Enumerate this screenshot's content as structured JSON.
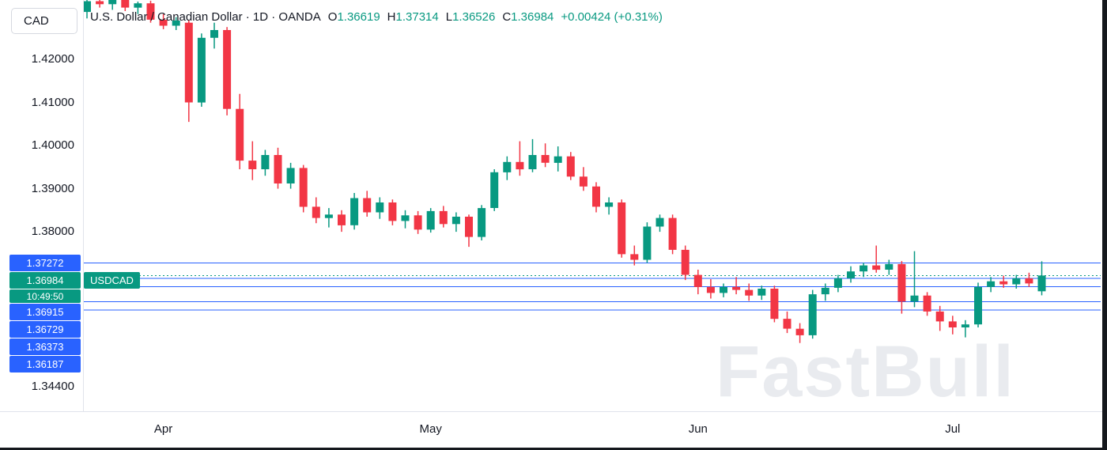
{
  "symbol_button": {
    "label": "CAD"
  },
  "header": {
    "title": "U.S. Dollar / Canadian Dollar · 1D · OANDA",
    "open_label": "O",
    "open": "1.36619",
    "high_label": "H",
    "high": "1.37314",
    "low_label": "L",
    "low": "1.36526",
    "close_label": "C",
    "close": "1.36984",
    "change": "+0.00424 (+0.31%)"
  },
  "watermark": "FastBull",
  "colors": {
    "up": "#089981",
    "down": "#F23645",
    "level_blue": "#2962FF",
    "text": "#131722",
    "axis_border": "#E0E3EB",
    "watermark": "#E9EBEF"
  },
  "chart_data": {
    "type": "candlestick",
    "title": "U.S. Dollar / Canadian Dollar",
    "symbol": "USDCAD",
    "interval": "1D",
    "exchange": "OANDA",
    "legend_position": "top-left",
    "grid": false,
    "visible_price_top": 1.43377,
    "visible_price_bottom": 1.33836,
    "price_ticks": [
      {
        "label": "1.42000",
        "price": 1.42
      },
      {
        "label": "1.41000",
        "price": 1.41
      },
      {
        "label": "1.40000",
        "price": 1.4
      },
      {
        "label": "1.39000",
        "price": 1.39
      },
      {
        "label": "1.38000",
        "price": 1.38
      },
      {
        "label": "1.34400",
        "price": 1.344
      }
    ],
    "levels": [
      {
        "label": "1.37272",
        "price": 1.37272
      },
      {
        "label": "1.36915",
        "price": 1.36915
      },
      {
        "label": "1.36729",
        "price": 1.36729
      },
      {
        "label": "1.36373",
        "price": 1.36373
      },
      {
        "label": "1.36187",
        "price": 1.36187
      }
    ],
    "current_price": {
      "label": "1.36984",
      "price": 1.36984,
      "time": "10:49:50",
      "tag": "USDCAD"
    },
    "time_labels": [
      {
        "label": "Apr",
        "index": 6
      },
      {
        "label": "May",
        "index": 27
      },
      {
        "label": "Jun",
        "index": 48
      },
      {
        "label": "Jul",
        "index": 68
      }
    ],
    "candles": [
      [
        1.431,
        1.434,
        1.4295,
        1.4335
      ],
      [
        1.4335,
        1.4345,
        1.432,
        1.4328
      ],
      [
        1.4328,
        1.434,
        1.4315,
        1.4338
      ],
      [
        1.4338,
        1.4344,
        1.4312,
        1.432
      ],
      [
        1.432,
        1.4334,
        1.4305,
        1.433
      ],
      [
        1.433,
        1.4336,
        1.4285,
        1.4292
      ],
      [
        1.4292,
        1.4305,
        1.427,
        1.4278
      ],
      [
        1.4278,
        1.4298,
        1.4268,
        1.429
      ],
      [
        1.4285,
        1.429,
        1.4055,
        1.41
      ],
      [
        1.41,
        1.426,
        1.409,
        1.425
      ],
      [
        1.425,
        1.4285,
        1.4225,
        1.4268
      ],
      [
        1.4268,
        1.4275,
        1.407,
        1.4085
      ],
      [
        1.4085,
        1.412,
        1.3945,
        1.3965
      ],
      [
        1.3965,
        1.401,
        1.392,
        1.3945
      ],
      [
        1.3945,
        1.399,
        1.393,
        1.3978
      ],
      [
        1.3978,
        1.3995,
        1.39,
        1.3912
      ],
      [
        1.3912,
        1.396,
        1.39,
        1.3948
      ],
      [
        1.3948,
        1.3955,
        1.3845,
        1.3858
      ],
      [
        1.3858,
        1.388,
        1.382,
        1.3832
      ],
      [
        1.3832,
        1.3855,
        1.381,
        1.384
      ],
      [
        1.384,
        1.385,
        1.38,
        1.3815
      ],
      [
        1.3815,
        1.389,
        1.3805,
        1.3878
      ],
      [
        1.3878,
        1.3895,
        1.3835,
        1.3845
      ],
      [
        1.3845,
        1.388,
        1.383,
        1.3868
      ],
      [
        1.3868,
        1.3875,
        1.3815,
        1.3825
      ],
      [
        1.3825,
        1.385,
        1.3808,
        1.3838
      ],
      [
        1.3838,
        1.3848,
        1.3795,
        1.3805
      ],
      [
        1.3805,
        1.3855,
        1.3798,
        1.3848
      ],
      [
        1.3848,
        1.386,
        1.381,
        1.3818
      ],
      [
        1.3818,
        1.3845,
        1.38,
        1.3835
      ],
      [
        1.3835,
        1.384,
        1.3765,
        1.3788
      ],
      [
        1.3788,
        1.3862,
        1.378,
        1.3855
      ],
      [
        1.3855,
        1.3945,
        1.3848,
        1.3938
      ],
      [
        1.3938,
        1.3975,
        1.392,
        1.3962
      ],
      [
        1.3962,
        1.401,
        1.393,
        1.3945
      ],
      [
        1.3945,
        1.4015,
        1.3938,
        1.3978
      ],
      [
        1.3978,
        1.4005,
        1.395,
        1.396
      ],
      [
        1.396,
        1.3998,
        1.394,
        1.3975
      ],
      [
        1.3975,
        1.3985,
        1.392,
        1.3928
      ],
      [
        1.3928,
        1.395,
        1.3895,
        1.3905
      ],
      [
        1.3905,
        1.3915,
        1.3845,
        1.3858
      ],
      [
        1.3858,
        1.388,
        1.384,
        1.3868
      ],
      [
        1.3868,
        1.3875,
        1.374,
        1.3748
      ],
      [
        1.3748,
        1.3768,
        1.3722,
        1.3735
      ],
      [
        1.3735,
        1.3822,
        1.3728,
        1.3812
      ],
      [
        1.3812,
        1.384,
        1.38,
        1.3832
      ],
      [
        1.3832,
        1.384,
        1.3748,
        1.3758
      ],
      [
        1.3758,
        1.3768,
        1.3688,
        1.37
      ],
      [
        1.37,
        1.3712,
        1.3655,
        1.3672
      ],
      [
        1.3672,
        1.369,
        1.3645,
        1.3658
      ],
      [
        1.3658,
        1.368,
        1.3648,
        1.3672
      ],
      [
        1.3672,
        1.3695,
        1.3655,
        1.3665
      ],
      [
        1.3665,
        1.368,
        1.364,
        1.3652
      ],
      [
        1.3652,
        1.3675,
        1.3642,
        1.3668
      ],
      [
        1.3668,
        1.3675,
        1.359,
        1.3598
      ],
      [
        1.3598,
        1.3615,
        1.3565,
        1.3575
      ],
      [
        1.3575,
        1.3588,
        1.3542,
        1.356
      ],
      [
        1.356,
        1.3665,
        1.3552,
        1.3655
      ],
      [
        1.3655,
        1.368,
        1.364,
        1.367
      ],
      [
        1.367,
        1.37,
        1.366,
        1.3692
      ],
      [
        1.3692,
        1.372,
        1.3682,
        1.3708
      ],
      [
        1.3708,
        1.3728,
        1.3695,
        1.3722
      ],
      [
        1.3722,
        1.3768,
        1.3705,
        1.3712
      ],
      [
        1.3712,
        1.3735,
        1.37,
        1.3725
      ],
      [
        1.3725,
        1.3732,
        1.361,
        1.3638
      ],
      [
        1.3638,
        1.3755,
        1.3625,
        1.3652
      ],
      [
        1.3652,
        1.366,
        1.3605,
        1.3615
      ],
      [
        1.3615,
        1.3628,
        1.357,
        1.3592
      ],
      [
        1.3592,
        1.3605,
        1.3562,
        1.3578
      ],
      [
        1.3578,
        1.3595,
        1.3555,
        1.3585
      ],
      [
        1.3585,
        1.3682,
        1.3578,
        1.3672
      ],
      [
        1.3672,
        1.3695,
        1.366,
        1.3685
      ],
      [
        1.3685,
        1.3698,
        1.367,
        1.3678
      ],
      [
        1.3678,
        1.37,
        1.3668,
        1.3692
      ],
      [
        1.3692,
        1.3705,
        1.3672,
        1.368
      ],
      [
        1.36619,
        1.37314,
        1.36526,
        1.36984
      ]
    ]
  }
}
